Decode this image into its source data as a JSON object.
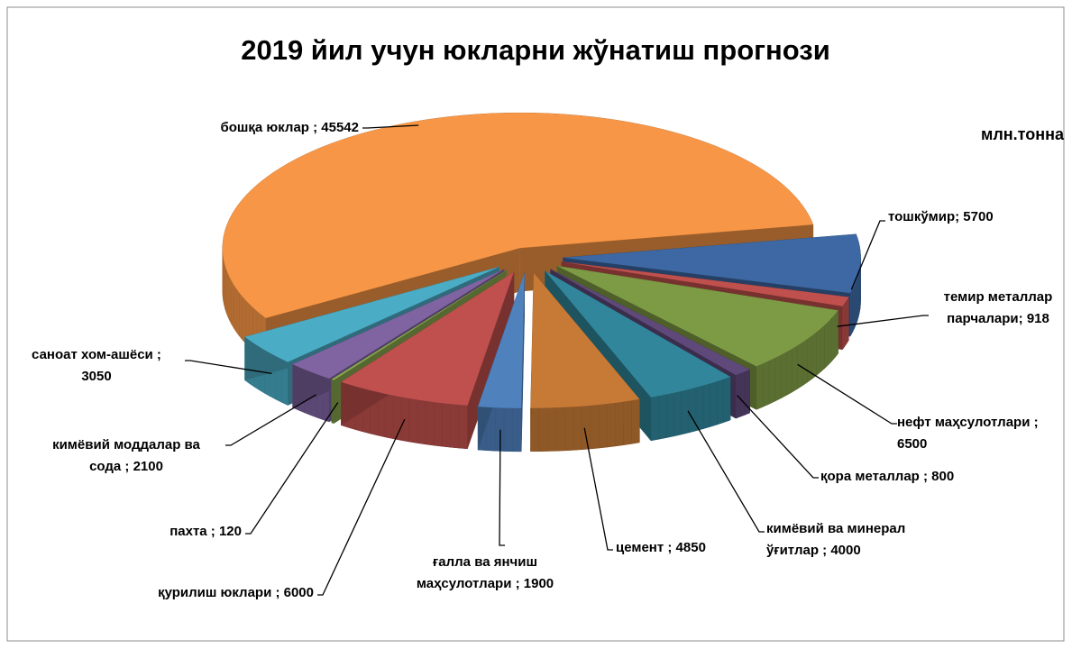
{
  "chart_data": {
    "type": "pie3d",
    "title": "2019 йил учун юкларни жўнатиш прогнози",
    "unit_label": "млн.тонна",
    "values": [
      5700,
      918,
      6500,
      800,
      4000,
      4850,
      1900,
      6000,
      120,
      2100,
      3050,
      45542
    ],
    "value_labels": [
      "тошкўмир; 5700",
      "темир металлар\nпарчалари; 918",
      "нефт маҳсулотлари ;\n6500",
      "қора металлар ; 800",
      "кимёвий ва минерал\nўғитлар ; 4000",
      "цемент ; 4850",
      "ғалла ва янчиш\nмаҳсулотлари ; 1900",
      "қурилиш юклари ; 6000",
      "пахта ; 120",
      "кимёвий моддалар ва\nсода ; 2100",
      "саноат хом-ашёси ;\n3050",
      "бошқа юклар ; 45542"
    ],
    "colors": [
      "#3d68a3",
      "#c0504d",
      "#7d9a44",
      "#5f497a",
      "#31869b",
      "#c77a36",
      "#4f81bd",
      "#c0504d",
      "#8aa84f",
      "#8064a2",
      "#4bacc6",
      "#f79646"
    ]
  }
}
